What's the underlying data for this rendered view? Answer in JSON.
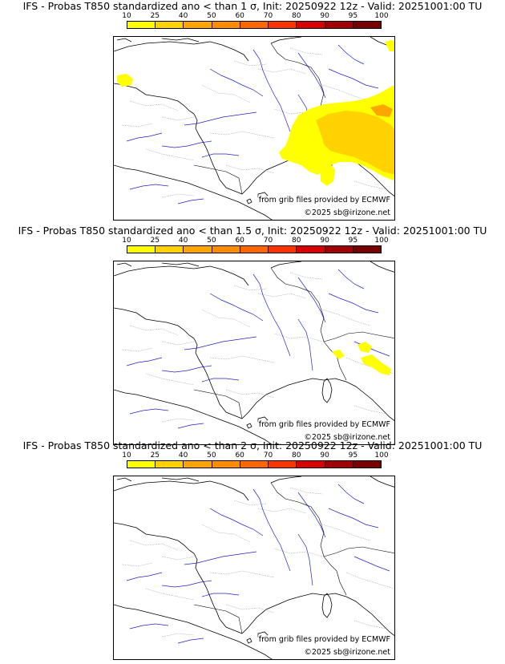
{
  "legend": {
    "ticks": [
      "10",
      "25",
      "40",
      "50",
      "60",
      "70",
      "80",
      "90",
      "95",
      "100"
    ],
    "colors": [
      "#ffff00",
      "#ffd200",
      "#ffa500",
      "#ff8c00",
      "#ff6600",
      "#ff3300",
      "#d80000",
      "#a00000",
      "#780000"
    ]
  },
  "panels": [
    {
      "title": "IFS - Probas T850  standardized ano < than 1 σ, Init: 20250922 12z - Valid: 20251001:00 TU",
      "credit": "from grib files provided by ECMWF",
      "copyright": "©2025 sb@irizone.net",
      "probability_areas": [
        "Alps / northern Italy / Switzerland / Corsica / Sardinia",
        "Brittany coast (small patch)",
        "Netherlands NE corner"
      ]
    },
    {
      "title": "IFS - Probas T850  standardized ano < than 1.5 σ, Init: 20250922 12z - Valid: 20251001:00 TU",
      "credit": "from grib files provided by ECMWF",
      "copyright": "©2025 sb@irizone.net",
      "probability_areas": [
        "Western Alps / Ligurian coast (small patches)"
      ]
    },
    {
      "title": "IFS - Probas T850  standardized ano < than 2 σ, Init: 20250922 12z - Valid: 20251001:00 TU",
      "credit": "from grib files provided by ECMWF",
      "copyright": "©2025 sb@irizone.net",
      "probability_areas": []
    }
  ]
}
